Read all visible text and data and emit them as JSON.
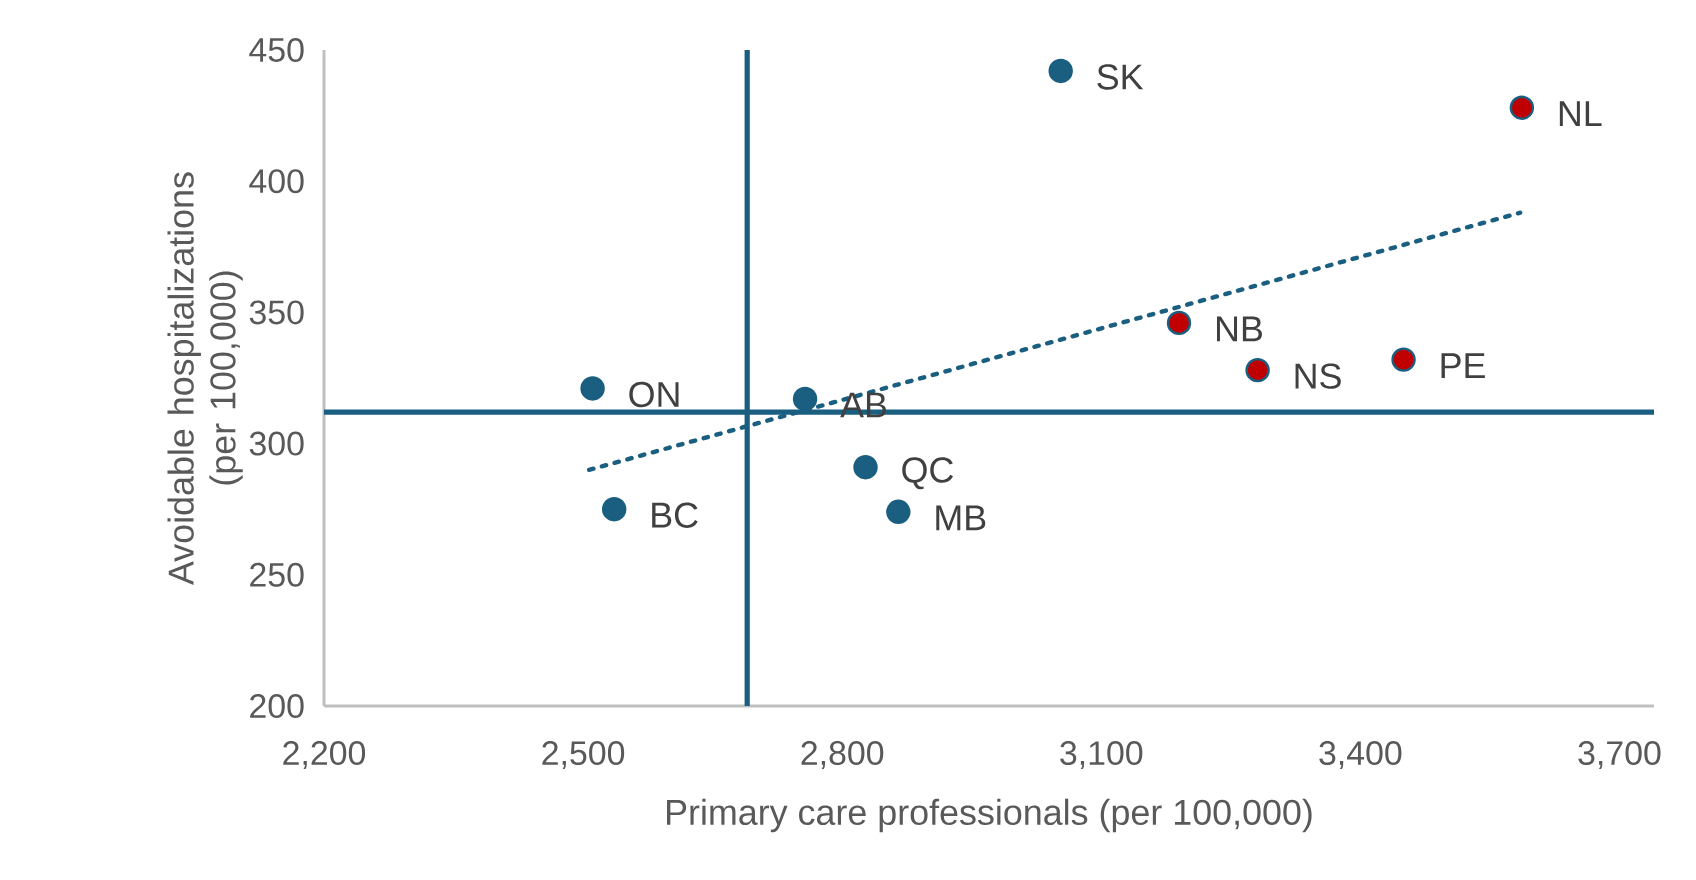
{
  "chart_data": {
    "type": "scatter",
    "xlabel": "Primary care professionals (per 100,000)",
    "ylabel": "Avoidable hospitalizations (per 100,000)",
    "xlim": [
      2200,
      3740
    ],
    "ylim": [
      200,
      450
    ],
    "xticks": [
      {
        "value": 2200,
        "label": "2,200"
      },
      {
        "value": 2500,
        "label": "2,500"
      },
      {
        "value": 2800,
        "label": "2,800"
      },
      {
        "value": 3100,
        "label": "3,100"
      },
      {
        "value": 3400,
        "label": "3,400"
      },
      {
        "value": 3700,
        "label": "3,700"
      }
    ],
    "yticks": [
      200,
      250,
      300,
      350,
      400,
      450
    ],
    "grid": false,
    "series": [
      {
        "color": "#1a5e80",
        "marker": "circle",
        "x": [
          2511,
          2536,
          2757,
          2827,
          2865,
          3053
        ],
        "values": [
          321,
          275,
          317,
          291,
          274,
          442
        ]
      },
      {
        "color": "#c00000",
        "marker": "circle",
        "x": [
          3190,
          3281,
          3450,
          3587
        ],
        "values": [
          346,
          328,
          332,
          428
        ]
      },
      {
        "type": "line",
        "color": "#1a5e80",
        "line_style": "dotted",
        "marker": "none",
        "x": [
          2507,
          3585
        ],
        "values": [
          290,
          388
        ]
      }
    ],
    "ref_lines": [
      {
        "axis": "x",
        "value": 2690,
        "color": "#1a5e80"
      },
      {
        "axis": "y",
        "value": 312,
        "color": "#1a5e80"
      }
    ],
    "annotations": [
      {
        "text": "ON",
        "x": 2511,
        "y": 321
      },
      {
        "text": "BC",
        "x": 2536,
        "y": 275
      },
      {
        "text": "AB",
        "x": 2757,
        "y": 317
      },
      {
        "text": "QC",
        "x": 2827,
        "y": 291
      },
      {
        "text": "MB",
        "x": 2865,
        "y": 274
      },
      {
        "text": "SK",
        "x": 3053,
        "y": 442
      },
      {
        "text": "NB",
        "x": 3190,
        "y": 346
      },
      {
        "text": "NS",
        "x": 3281,
        "y": 328
      },
      {
        "text": "PE",
        "x": 3450,
        "y": 332
      },
      {
        "text": "NL",
        "x": 3587,
        "y": 428
      }
    ]
  }
}
